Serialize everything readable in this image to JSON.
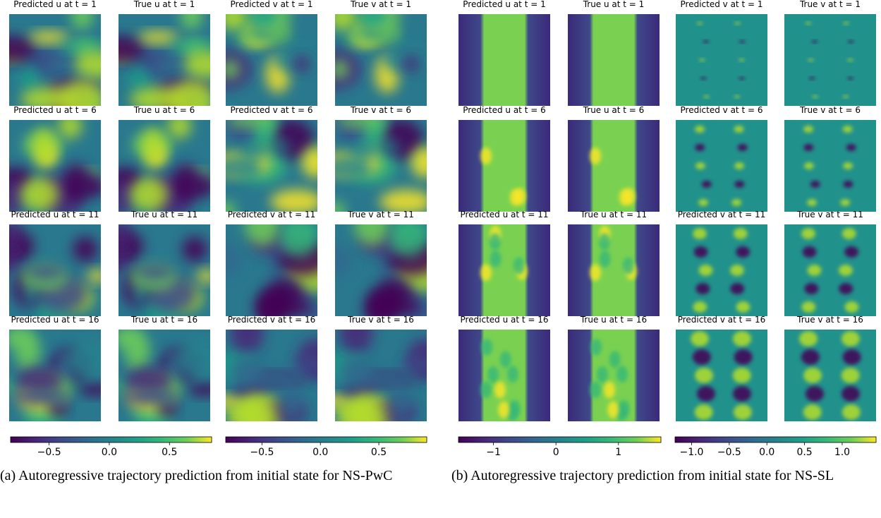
{
  "subfigures": [
    {
      "panels": [
        [
          "Predicted u at t = 1",
          "True u at t = 1",
          "Predicted v at t = 1",
          "True v at t = 1"
        ],
        [
          "Predicted u at t = 6",
          "True u at t = 6",
          "Predicted v at t = 6",
          "True v at t = 6"
        ],
        [
          "Predicted u at t = 11",
          "True u at t = 11",
          "Predicted v at t = 11",
          "True v at t = 11"
        ],
        [
          "Predicted u at t = 16",
          "True u at t = 16",
          "Predicted v at t = 16",
          "True v at t = 16"
        ]
      ],
      "colorbars": [
        {
          "lim": [
            -0.82,
            0.85
          ],
          "ticks": [
            {
              "value": -0.5,
              "label": "−0.5"
            },
            {
              "value": 0,
              "label": "0.0"
            },
            {
              "value": 0.5,
              "label": "0.5"
            }
          ]
        },
        {
          "lim": [
            -0.81,
            0.91
          ],
          "ticks": [
            {
              "value": -0.5,
              "label": "−0.5"
            },
            {
              "value": 0,
              "label": "0.0"
            },
            {
              "value": 0.5,
              "label": "0.5"
            }
          ]
        }
      ],
      "caption": "(a) Autoregressive trajectory prediction from initial state for NS-PwC"
    },
    {
      "panels": [
        [
          "Predicted u at t = 1",
          "True u at t = 1",
          "Predicted v at t = 1",
          "True v at t = 1"
        ],
        [
          "Predicted u at t = 6",
          "True u at t = 6",
          "Predicted v at t = 6",
          "True v at t = 6"
        ],
        [
          "Predicted u at t = 11",
          "True u at t = 11",
          "Predicted v at t = 11",
          "True v at t = 11"
        ],
        [
          "Predicted u at t = 16",
          "True u at t = 16",
          "Predicted v at t = 16",
          "True v at t = 16"
        ]
      ],
      "colorbars": [
        {
          "lim": [
            -1.56,
            1.68
          ],
          "ticks": [
            {
              "value": -1,
              "label": "−1"
            },
            0,
            1
          ]
        },
        {
          "lim": [
            -1.22,
            1.45
          ],
          "ticks": [
            {
              "value": -1,
              "label": "−1.0"
            },
            {
              "value": -0.5,
              "label": "−0.5"
            },
            {
              "value": 0,
              "label": "0.0"
            },
            {
              "value": 0.5,
              "label": "0.5"
            },
            {
              "value": 1,
              "label": "1.0"
            }
          ]
        }
      ],
      "caption": "(b) Autoregressive trajectory prediction from initial state for NS-SL"
    }
  ]
}
